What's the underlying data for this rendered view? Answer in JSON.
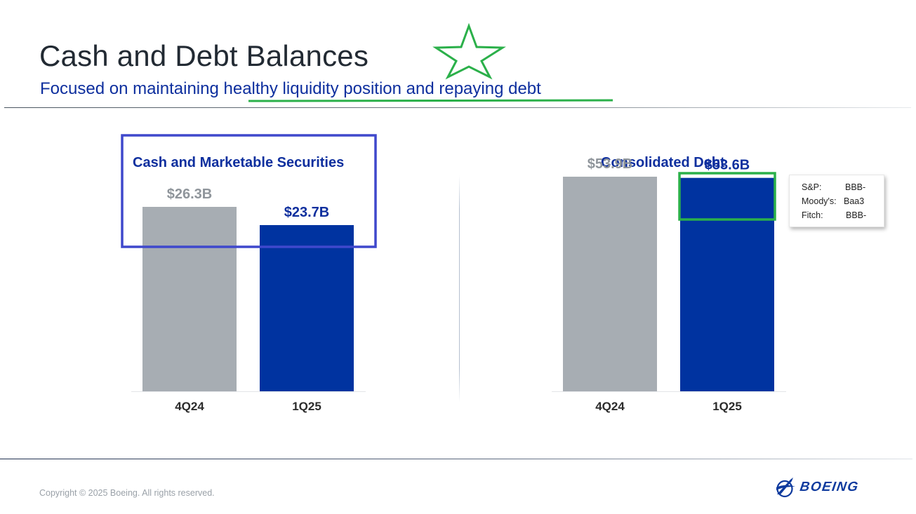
{
  "header": {
    "title": "Cash and Debt Balances",
    "subtitle": "Focused on maintaining healthy liquidity position and repaying debt"
  },
  "chart_data": [
    {
      "type": "bar",
      "title": "Cash and Marketable Securities",
      "categories": [
        "4Q24",
        "1Q25"
      ],
      "values": [
        26.3,
        23.7
      ],
      "data_labels": [
        "$26.3B",
        "$23.7B"
      ],
      "colors": [
        "#a7adb3",
        "#0033a0"
      ],
      "label_colors": [
        "#8f959b",
        "#0e2f9e"
      ],
      "xlabel": "",
      "ylabel": "",
      "ylim": [
        0,
        31
      ],
      "grid": false,
      "legend": "none"
    },
    {
      "type": "bar",
      "title": "Consolidated Debt",
      "categories": [
        "4Q24",
        "1Q25"
      ],
      "values": [
        53.9,
        53.6
      ],
      "data_labels": [
        "$53.9B",
        "$53.6B"
      ],
      "colors": [
        "#a7adb3",
        "#0033a0"
      ],
      "label_colors": [
        "#8f959b",
        "#0e2f9e"
      ],
      "xlabel": "",
      "ylabel": "",
      "ylim": [
        0,
        54.6
      ],
      "grid": false,
      "legend": "none"
    }
  ],
  "ratings": [
    {
      "agency": "S&P:",
      "rating": "BBB-"
    },
    {
      "agency": "Moody's:",
      "rating": "Baa3"
    },
    {
      "agency": "Fitch:",
      "rating": "BBB-"
    }
  ],
  "footer": {
    "copyright": "Copyright © 2025 Boeing. All rights reserved.",
    "logo_text": "BOEING"
  },
  "annotations": {
    "colors": {
      "highlight_green": "#2bb04a",
      "highlight_blue": "#3f48cc"
    },
    "icons": [
      "star-icon"
    ]
  }
}
